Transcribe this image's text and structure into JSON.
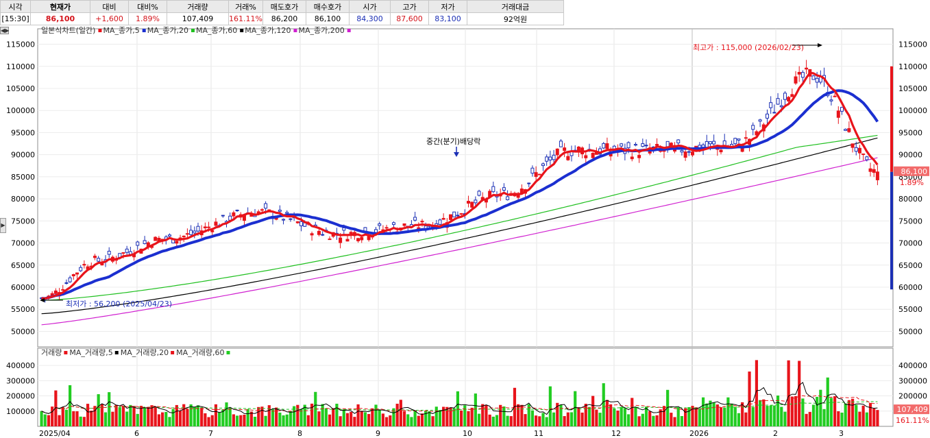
{
  "quote_table": {
    "headers": [
      "시각",
      "현재가",
      "대비",
      "대비%",
      "거래량",
      "거래%",
      "매도호가",
      "매수호가",
      "시가",
      "고가",
      "저가",
      "거래대금"
    ],
    "values": [
      "[15:30]",
      "86,100",
      "+1,600",
      "1.89%",
      "107,409",
      "161.11%",
      "86,200",
      "86,100",
      "84,300",
      "87,600",
      "83,100",
      "92억원"
    ]
  },
  "colors": {
    "up": "#e8141b",
    "down": "#1b2fb5",
    "ma5": "#e8141b",
    "ma20": "#1b2fd0",
    "ma60": "#20c020",
    "ma120": "#000000",
    "ma200": "#d020d0",
    "vol_up": "#e8141b",
    "vol_down": "#22cc22"
  },
  "price_legend": [
    {
      "label": "일본식차트(일간)",
      "color": "",
      "icon": ""
    },
    {
      "label": "MA_종가,5",
      "color": "#e8141b",
      "icon": "swatch"
    },
    {
      "label": "MA_종가,20",
      "color": "#1b2fd0",
      "icon": "swatch"
    },
    {
      "label": "MA_종가,60",
      "color": "#20c020",
      "icon": "swatch"
    },
    {
      "label": "MA_종가,120",
      "color": "#000000",
      "icon": "swatch"
    },
    {
      "label": "MA_종가,200",
      "color": "#d020d0",
      "icon": "swatch"
    }
  ],
  "volume_legend": [
    {
      "label": "거래량",
      "color": "#e8141b",
      "icon": "swatch"
    },
    {
      "label": "MA_거래량,5",
      "color": "#000000",
      "icon": "swatch"
    },
    {
      "label": "MA_거래량,20",
      "color": "#e8141b",
      "icon": "swatch"
    },
    {
      "label": "MA_거래량,60",
      "color": "#22cc22",
      "icon": "swatch"
    }
  ],
  "chart_data": [
    {
      "type": "line",
      "subtype": "candlestick",
      "period": "daily",
      "x_tick_labels": [
        "2025/04",
        "6",
        "7",
        "8",
        "9",
        "10",
        "11",
        "12",
        "2026",
        "2",
        "3"
      ],
      "y_ticks": [
        50000,
        55000,
        60000,
        65000,
        70000,
        75000,
        80000,
        85000,
        90000,
        95000,
        100000,
        105000,
        110000,
        115000
      ],
      "ylim": [
        46500,
        118500
      ],
      "close_path_monthly": [
        {
          "month": "2025/04",
          "close": 57500
        },
        {
          "month": "2025/05",
          "close": 66000
        },
        {
          "month": "2025/06",
          "close": 71000
        },
        {
          "month": "2025/07",
          "close": 77000
        },
        {
          "month": "2025/08",
          "close": 72000
        },
        {
          "month": "2025/09",
          "close": 74000
        },
        {
          "month": "2025/10",
          "close": 81000
        },
        {
          "month": "2025/11",
          "close": 91000
        },
        {
          "month": "2025/12",
          "close": 91000
        },
        {
          "month": "2026/01",
          "close": 92000
        },
        {
          "month": "2026/02",
          "close": 108000
        },
        {
          "month": "2026/03",
          "close": 86100
        }
      ],
      "series": [
        {
          "name": "MA_종가,5"
        },
        {
          "name": "MA_종가,20"
        },
        {
          "name": "MA_종가,60"
        },
        {
          "name": "MA_종가,120"
        },
        {
          "name": "MA_종가,200"
        }
      ],
      "annotations": {
        "high": "최고가 : 115,000 (2026/02/23)",
        "low": "최저가 : 56,200 (2025/04/23)",
        "dividend": "중간(분기)배당락",
        "last_price": "86,100",
        "last_change_pct": "1.89%"
      },
      "grid": true
    },
    {
      "type": "bar",
      "title": "",
      "y_ticks": [
        100000,
        200000,
        300000,
        400000
      ],
      "ylim": [
        0,
        450000
      ],
      "annotations": {
        "last_volume": "107,409",
        "last_volume_pct": "161.11%"
      },
      "grid": true
    }
  ]
}
